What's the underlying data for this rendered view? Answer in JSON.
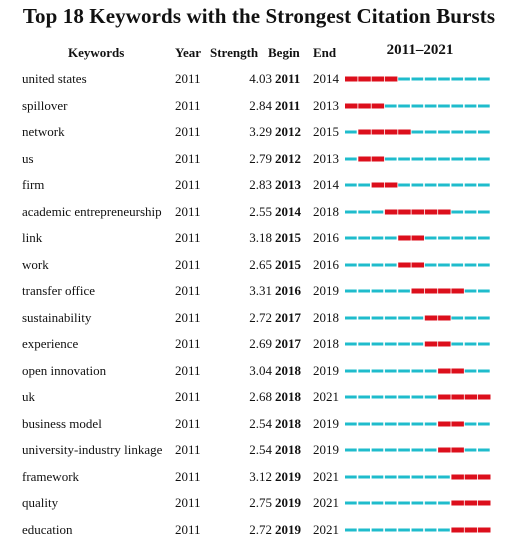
{
  "title": "Top 18 Keywords with the Strongest Citation Bursts",
  "headers": {
    "keywords": "Keywords",
    "year": "Year",
    "strength": "Strength",
    "begin": "Begin",
    "end": "End",
    "range": "2011–2021"
  },
  "colors": {
    "base": "#1fbccc",
    "burst": "#dc0f1c"
  },
  "chart_data": {
    "type": "table",
    "title": "Top 18 Keywords with the Strongest Citation Bursts",
    "timeline": {
      "start": 2011,
      "end": 2021
    },
    "columns": [
      "Keywords",
      "Year",
      "Strength",
      "Begin",
      "End",
      "2011–2021"
    ],
    "rows": [
      {
        "keyword": "united states",
        "year": "2011",
        "strength": "4.03",
        "begin": "2011",
        "end": "2014"
      },
      {
        "keyword": "spillover",
        "year": "2011",
        "strength": "2.84",
        "begin": "2011",
        "end": "2013"
      },
      {
        "keyword": "network",
        "year": "2011",
        "strength": "3.29",
        "begin": "2012",
        "end": "2015"
      },
      {
        "keyword": "us",
        "year": "2011",
        "strength": "2.79",
        "begin": "2012",
        "end": "2013"
      },
      {
        "keyword": "firm",
        "year": "2011",
        "strength": "2.83",
        "begin": "2013",
        "end": "2014"
      },
      {
        "keyword": "academic entrepreneurship",
        "year": "2011",
        "strength": "2.55",
        "begin": "2014",
        "end": "2018"
      },
      {
        "keyword": "link",
        "year": "2011",
        "strength": "3.18",
        "begin": "2015",
        "end": "2016"
      },
      {
        "keyword": "work",
        "year": "2011",
        "strength": "2.65",
        "begin": "2015",
        "end": "2016"
      },
      {
        "keyword": "transfer office",
        "year": "2011",
        "strength": "3.31",
        "begin": "2016",
        "end": "2019"
      },
      {
        "keyword": "sustainability",
        "year": "2011",
        "strength": "2.72",
        "begin": "2017",
        "end": "2018"
      },
      {
        "keyword": "experience",
        "year": "2011",
        "strength": "2.69",
        "begin": "2017",
        "end": "2018"
      },
      {
        "keyword": "open innovation",
        "year": "2011",
        "strength": "3.04",
        "begin": "2018",
        "end": "2019"
      },
      {
        "keyword": "uk",
        "year": "2011",
        "strength": "2.68",
        "begin": "2018",
        "end": "2021"
      },
      {
        "keyword": "business model",
        "year": "2011",
        "strength": "2.54",
        "begin": "2018",
        "end": "2019"
      },
      {
        "keyword": "university-industry linkage",
        "year": "2011",
        "strength": "2.54",
        "begin": "2018",
        "end": "2019"
      },
      {
        "keyword": "framework",
        "year": "2011",
        "strength": "3.12",
        "begin": "2019",
        "end": "2021"
      },
      {
        "keyword": "quality",
        "year": "2011",
        "strength": "2.75",
        "begin": "2019",
        "end": "2021"
      },
      {
        "keyword": "education",
        "year": "2011",
        "strength": "2.72",
        "begin": "2019",
        "end": "2021"
      }
    ]
  }
}
